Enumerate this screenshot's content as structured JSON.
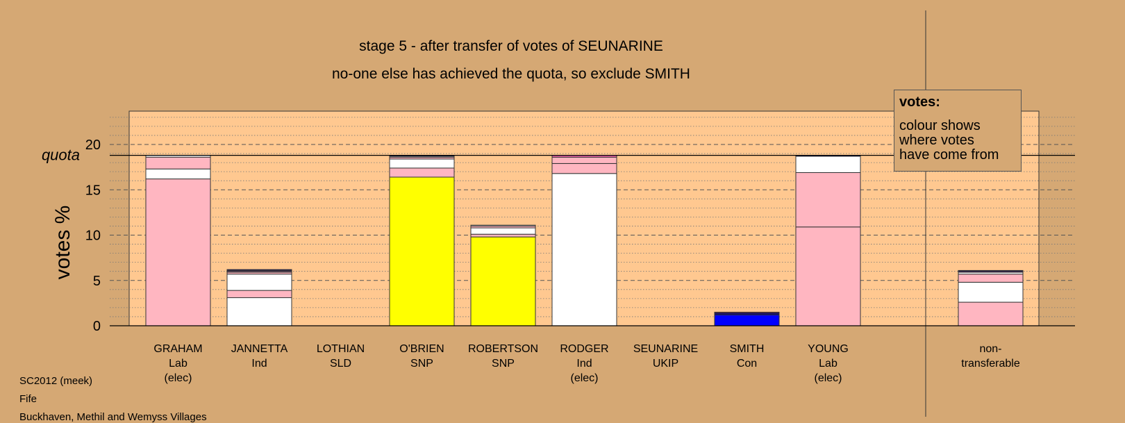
{
  "chart_data": {
    "type": "bar",
    "title": "stage 5 - after transfer of votes of SEUNARINE",
    "subtitle": "no-one else has achieved the quota, so exclude SMITH",
    "ylabel": "votes %",
    "ylim": [
      0,
      24
    ],
    "yticks": [
      0,
      5,
      10,
      15,
      20
    ],
    "quota": 18.8,
    "quota_label": "quota",
    "candidates": [
      {
        "name": "GRAHAM",
        "party": "Lab",
        "note": "(elec)",
        "segments": [
          {
            "value": 16.2,
            "color": "#ffb6c1"
          },
          {
            "value": 1.1,
            "color": "#ffffff"
          },
          {
            "value": 1.3,
            "color": "#ffb6c1"
          },
          {
            "value": 0.2,
            "color": "#ffffff"
          }
        ]
      },
      {
        "name": "JANNETTA",
        "party": "Ind",
        "note": "",
        "segments": [
          {
            "value": 3.1,
            "color": "#ffffff"
          },
          {
            "value": 0.8,
            "color": "#ffb6c1"
          },
          {
            "value": 1.8,
            "color": "#ffffff"
          },
          {
            "value": 0.2,
            "color": "#ffb6c1"
          },
          {
            "value": 0.1,
            "color": "#ffffff"
          },
          {
            "value": 0.1,
            "color": "#800080"
          },
          {
            "value": 0.1,
            "color": "#000080"
          }
        ]
      },
      {
        "name": "LOTHIAN",
        "party": "SLD",
        "note": "",
        "segments": []
      },
      {
        "name": "O'BRIEN",
        "party": "SNP",
        "note": "",
        "segments": [
          {
            "value": 16.4,
            "color": "#ffff00"
          },
          {
            "value": 1.0,
            "color": "#ffb6c1"
          },
          {
            "value": 1.0,
            "color": "#ffffff"
          },
          {
            "value": 0.2,
            "color": "#ffb6c1"
          },
          {
            "value": 0.1,
            "color": "#ffffff"
          },
          {
            "value": 0.1,
            "color": "#000080"
          }
        ]
      },
      {
        "name": "ROBERTSON",
        "party": "SNP",
        "note": "",
        "segments": [
          {
            "value": 9.8,
            "color": "#ffff00"
          },
          {
            "value": 0.3,
            "color": "#ffb6c1"
          },
          {
            "value": 0.7,
            "color": "#ffffff"
          },
          {
            "value": 0.2,
            "color": "#ffb6c1"
          },
          {
            "value": 0.1,
            "color": "#ffffff"
          }
        ]
      },
      {
        "name": "RODGER",
        "party": "Ind",
        "note": "(elec)",
        "segments": [
          {
            "value": 16.8,
            "color": "#ffffff"
          },
          {
            "value": 1.1,
            "color": "#ffb6c1"
          },
          {
            "value": 0.7,
            "color": "#ffb6c1"
          },
          {
            "value": 0.2,
            "color": "#ff69b4"
          }
        ]
      },
      {
        "name": "SEUNARINE",
        "party": "UKIP",
        "note": "",
        "segments": []
      },
      {
        "name": "SMITH",
        "party": "Con",
        "note": "",
        "segments": [
          {
            "value": 1.2,
            "color": "#0000ff"
          },
          {
            "value": 0.2,
            "color": "#000080"
          },
          {
            "value": 0.1,
            "color": "#800080"
          }
        ]
      },
      {
        "name": "YOUNG",
        "party": "Lab",
        "note": "(elec)",
        "segments": [
          {
            "value": 10.9,
            "color": "#ffb6c1"
          },
          {
            "value": 6.0,
            "color": "#ffb6c1"
          },
          {
            "value": 1.8,
            "color": "#ffffff"
          },
          {
            "value": 0.1,
            "color": "#000080"
          }
        ]
      }
    ],
    "nontransferable": {
      "label_line1": "non-",
      "label_line2": "transferable",
      "segments": [
        {
          "value": 2.6,
          "color": "#ffb6c1"
        },
        {
          "value": 2.2,
          "color": "#ffffff"
        },
        {
          "value": 0.9,
          "color": "#ffb6c1"
        },
        {
          "value": 0.2,
          "color": "#ffffff"
        },
        {
          "value": 0.1,
          "color": "#800080"
        },
        {
          "value": 0.1,
          "color": "#000080"
        }
      ]
    },
    "colors": {
      "background": "#d5a874",
      "plot_background": "#ffc890"
    }
  },
  "legend": {
    "title": "votes:",
    "line1": "colour shows",
    "line2": "where votes",
    "line3": "have come from"
  },
  "footer": {
    "line1": "SC2012 (meek)",
    "line2": "Fife",
    "line3": "Buckhaven, Methil and Wemyss Villages"
  }
}
